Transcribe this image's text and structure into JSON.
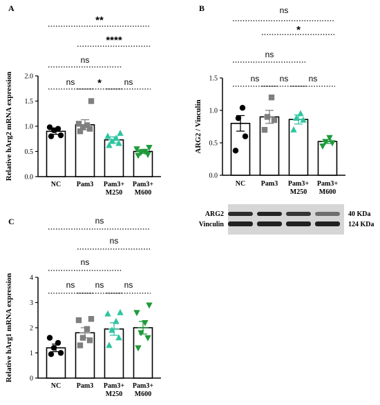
{
  "chart_data": [
    {
      "panel": "A",
      "type": "bar",
      "ylabel": "Relative hArg2 mRNA expression",
      "ylim": [
        0,
        2.0
      ],
      "yticks": [
        "0.0",
        "0.5",
        "1.0",
        "1.5",
        "2.0"
      ],
      "categories": [
        "NC",
        "Pam3",
        "Pam3+\nM250",
        "Pam3+\nM600"
      ],
      "values": [
        0.9,
        1.03,
        0.73,
        0.5
      ],
      "errors": [
        0.06,
        0.1,
        0.06,
        0.04
      ],
      "points": [
        [
          0.8,
          0.82,
          0.92,
          0.95,
          0.98
        ],
        [
          0.9,
          0.95,
          0.98,
          1.02,
          1.05,
          1.5
        ],
        [
          0.62,
          0.66,
          0.7,
          0.76,
          0.8,
          0.86
        ],
        [
          0.42,
          0.44,
          0.48,
          0.5,
          0.55,
          0.58
        ]
      ],
      "comparisons": [
        {
          "from": 0,
          "to": 1,
          "label": "ns"
        },
        {
          "from": 1,
          "to": 2,
          "label": "*"
        },
        {
          "from": 2,
          "to": 3,
          "label": "ns"
        },
        {
          "from": 0,
          "to": 2,
          "label": "ns"
        },
        {
          "from": 1,
          "to": 3,
          "label": "****"
        },
        {
          "from": 0,
          "to": 3,
          "label": "**"
        }
      ]
    },
    {
      "panel": "B",
      "type": "bar",
      "ylabel": "ARG2 / Vinculin",
      "ylim": [
        0,
        1.5
      ],
      "yticks": [
        "0.0",
        "0.5",
        "1.0",
        "1.5"
      ],
      "categories": [
        "NC",
        "Pam3",
        "Pam3+\nM250",
        "Pam3+\nM600"
      ],
      "values": [
        0.8,
        0.9,
        0.86,
        0.52
      ],
      "errors": [
        0.12,
        0.1,
        0.07,
        0.03
      ],
      "points": [
        [
          0.38,
          0.6,
          0.88,
          1.04
        ],
        [
          0.7,
          0.85,
          0.9,
          1.2
        ],
        [
          0.7,
          0.85,
          0.88,
          0.95
        ],
        [
          0.45,
          0.5,
          0.52,
          0.58
        ]
      ],
      "comparisons": [
        {
          "from": 0,
          "to": 1,
          "label": "ns"
        },
        {
          "from": 1,
          "to": 2,
          "label": "ns"
        },
        {
          "from": 2,
          "to": 3,
          "label": "ns"
        },
        {
          "from": 0,
          "to": 2,
          "label": "ns"
        },
        {
          "from": 1,
          "to": 3,
          "label": "*"
        },
        {
          "from": 0,
          "to": 3,
          "label": "ns"
        }
      ],
      "blot": {
        "rows": [
          "ARG2",
          "Vinculin"
        ],
        "sizes": [
          "40 KDa",
          "124 KDa"
        ]
      }
    },
    {
      "panel": "C",
      "type": "bar",
      "ylabel": "Relative hArg1 mRNA expression",
      "ylim": [
        0,
        4
      ],
      "yticks": [
        "0",
        "1",
        "2",
        "3",
        "4"
      ],
      "categories": [
        "NC",
        "Pam3",
        "Pam3+\nM250",
        "Pam3+\nM600"
      ],
      "values": [
        1.2,
        1.8,
        1.95,
        2.0
      ],
      "errors": [
        0.15,
        0.2,
        0.25,
        0.25
      ],
      "points": [
        [
          0.95,
          1.0,
          1.2,
          1.4,
          1.6
        ],
        [
          1.3,
          1.5,
          1.6,
          1.95,
          2.3,
          2.35
        ],
        [
          1.3,
          1.6,
          1.9,
          2.25,
          2.55,
          2.6
        ],
        [
          1.2,
          1.6,
          1.8,
          2.2,
          2.6,
          2.9
        ]
      ],
      "comparisons": [
        {
          "from": 0,
          "to": 1,
          "label": "ns"
        },
        {
          "from": 1,
          "to": 2,
          "label": "ns"
        },
        {
          "from": 2,
          "to": 3,
          "label": "ns"
        },
        {
          "from": 0,
          "to": 2,
          "label": "ns"
        },
        {
          "from": 1,
          "to": 3,
          "label": "ns"
        },
        {
          "from": 0,
          "to": 3,
          "label": "ns"
        }
      ]
    }
  ],
  "colors": {
    "NC": "#000000",
    "Pam3": "#7f7f7f",
    "M250": "#2ec4a0",
    "M600": "#1e9a3a"
  },
  "markers": [
    "circle",
    "square",
    "triangle-up",
    "triangle-down"
  ]
}
